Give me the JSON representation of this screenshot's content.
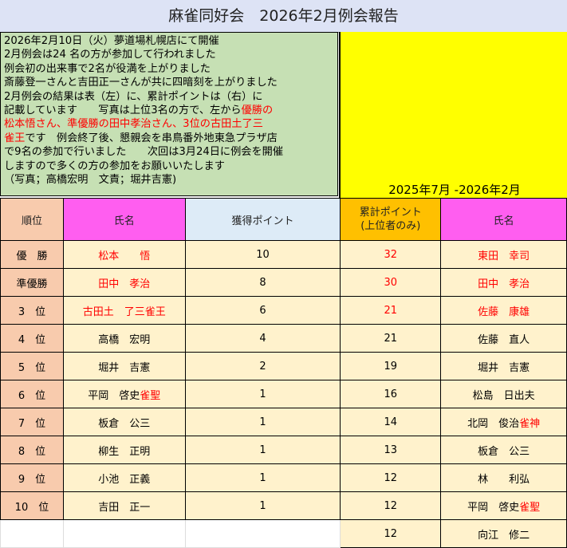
{
  "title": "麻雀同好会　2026年2月例会報告",
  "notice": {
    "lines_before": "2026年2月10日（火）夢道場札幌店にて開催\n2月例会は24 名の方が参加して行われました\n例会初の出来事で2名が役満を上がりました\n斎藤登一さんと吉田正一さんが共に四暗刻を上がりました\n2月例会の結果は表（左）に、累計ポイントは（右）に\n記載しています　　写真は上位3名の方で、左から",
    "highlight": "優勝の\n松本悟さん、準優勝の田中孝治さん、3位の古田土了三\n雀王",
    "lines_after": "です　例会終了後、懇親会を串鳥番外地東急プラザ店\nで9名の参加で行いました　　次回は3月24日に例会を開催\nしますので多くの方の参加をお願いいたします\n（写真；高橋宏明　文責；堀井吉憲)"
  },
  "period": "2025年7月 -2026年2月",
  "headers": {
    "rank": "順位",
    "name": "氏名",
    "points": "獲得ポイント",
    "cumulative": "累計ポイント\n(上位者のみ)",
    "cum_name": "氏名"
  },
  "rows": [
    {
      "rank": "優　勝",
      "name": "松本　　悟",
      "name_suffix": "",
      "points": "10",
      "cum": "32",
      "cum_name": "東田　幸司",
      "cum_suffix": "",
      "red": true,
      "cum_red": true
    },
    {
      "rank": "準優勝",
      "name": "田中　孝治",
      "name_suffix": "",
      "points": "8",
      "cum": "30",
      "cum_name": "田中　孝治",
      "cum_suffix": "",
      "red": true,
      "cum_red": true
    },
    {
      "rank": "3　位",
      "name": "古田土　了三雀王",
      "name_suffix": "",
      "points": "6",
      "cum": "21",
      "cum_name": "佐藤　康雄",
      "cum_suffix": "",
      "red": true,
      "cum_red": true
    },
    {
      "rank": "4　位",
      "name": "高橋　宏明",
      "name_suffix": "",
      "points": "4",
      "cum": "21",
      "cum_name": "佐藤　直人",
      "cum_suffix": ""
    },
    {
      "rank": "5　位",
      "name": "堀井　吉憲",
      "name_suffix": "",
      "points": "2",
      "cum": "19",
      "cum_name": "堀井　吉憲",
      "cum_suffix": ""
    },
    {
      "rank": "6　位",
      "name": "平岡　啓史",
      "name_suffix": "雀聖",
      "points": "1",
      "cum": "16",
      "cum_name": "松島　日出夫",
      "cum_suffix": ""
    },
    {
      "rank": "7　位",
      "name": "板倉　公三",
      "name_suffix": "",
      "points": "1",
      "cum": "14",
      "cum_name": "北岡　俊治",
      "cum_suffix": "雀神"
    },
    {
      "rank": "8　位",
      "name": "柳生　正明",
      "name_suffix": "",
      "points": "1",
      "cum": "13",
      "cum_name": "板倉　公三",
      "cum_suffix": ""
    },
    {
      "rank": "9　位",
      "name": "小池　正義",
      "name_suffix": "",
      "points": "1",
      "cum": "12",
      "cum_name": "林　　利弘",
      "cum_suffix": ""
    },
    {
      "rank": "10　位",
      "name": "吉田　正一",
      "name_suffix": "",
      "points": "1",
      "cum": "12",
      "cum_name": "平岡　啓史",
      "cum_suffix": "雀聖"
    },
    {
      "rank": "",
      "name": "",
      "name_suffix": "",
      "points": "",
      "cum": "12",
      "cum_name": "向江　修二",
      "cum_suffix": ""
    }
  ],
  "colors": {
    "highlight": "#ff0000",
    "notice_bg": "#c6e0b4",
    "period_bg": "#ffff00",
    "cell_bg": "#fff2cc",
    "rank_bg": "#f8cbad",
    "name_header": "#ff5ef0",
    "points_header": "#ddebf7",
    "cum_header": "#ffc000"
  }
}
